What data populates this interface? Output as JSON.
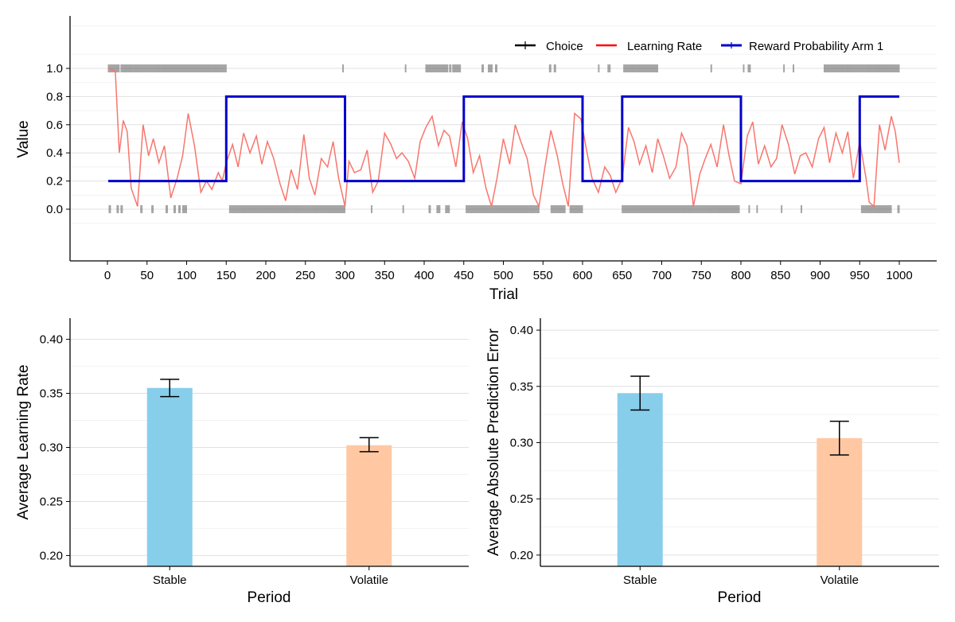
{
  "chart_data": [
    {
      "type": "line",
      "xlabel": "Trial",
      "ylabel": "Value",
      "xlim": [
        0,
        1000
      ],
      "ylim": [
        -0.2,
        1.2
      ],
      "x_ticks": [
        "0",
        "50",
        "100",
        "150",
        "200",
        "250",
        "300",
        "350",
        "400",
        "450",
        "500",
        "550",
        "600",
        "650",
        "700",
        "750",
        "800",
        "850",
        "900",
        "950",
        "1000"
      ],
      "y_ticks": [
        "0.0",
        "0.2",
        "0.4",
        "0.6",
        "0.8",
        "1.0"
      ],
      "grid": true,
      "legend_position": "top-right",
      "legend": [
        "Choice",
        "Learning Rate",
        "Reward Probability Arm 1"
      ],
      "colors": {
        "choice": "#000000",
        "learning_rate": "#f8766d",
        "learning_rate_legend": "#ff0000",
        "reward": "#0000cc",
        "choice_tick": "#555555"
      },
      "series": [
        {
          "name": "Reward Probability Arm 1",
          "x": [
            1,
            150,
            150,
            300,
            300,
            450,
            450,
            600,
            600,
            650,
            650,
            800,
            800,
            950,
            950,
            1000
          ],
          "y": [
            0.2,
            0.2,
            0.8,
            0.8,
            0.2,
            0.2,
            0.8,
            0.8,
            0.2,
            0.2,
            0.8,
            0.8,
            0.2,
            0.2,
            0.8,
            0.8
          ]
        },
        {
          "name": "Learning Rate",
          "x": [
            1,
            10,
            15,
            20,
            25,
            30,
            38,
            45,
            52,
            58,
            65,
            72,
            80,
            88,
            95,
            102,
            110,
            118,
            125,
            132,
            140,
            145,
            150,
            158,
            165,
            172,
            180,
            188,
            195,
            202,
            210,
            218,
            225,
            232,
            240,
            248,
            255,
            262,
            270,
            278,
            285,
            292,
            300,
            305,
            312,
            320,
            328,
            335,
            342,
            350,
            358,
            365,
            372,
            380,
            388,
            395,
            402,
            410,
            418,
            425,
            432,
            440,
            448,
            455,
            462,
            470,
            478,
            485,
            492,
            500,
            508,
            515,
            522,
            530,
            538,
            545,
            552,
            560,
            568,
            575,
            582,
            590,
            598,
            605,
            612,
            620,
            628,
            635,
            642,
            650,
            658,
            665,
            672,
            680,
            688,
            695,
            702,
            710,
            718,
            725,
            732,
            740,
            748,
            755,
            762,
            770,
            778,
            785,
            792,
            800,
            808,
            815,
            822,
            830,
            838,
            845,
            852,
            860,
            868,
            875,
            882,
            890,
            898,
            905,
            912,
            920,
            928,
            935,
            942,
            950,
            958,
            962,
            968,
            975,
            982,
            990,
            995,
            1000
          ],
          "y": [
            1.0,
            0.98,
            0.4,
            0.63,
            0.55,
            0.15,
            0.02,
            0.6,
            0.38,
            0.5,
            0.33,
            0.45,
            0.08,
            0.22,
            0.38,
            0.68,
            0.45,
            0.12,
            0.2,
            0.14,
            0.26,
            0.2,
            0.33,
            0.46,
            0.3,
            0.54,
            0.4,
            0.52,
            0.32,
            0.48,
            0.36,
            0.18,
            0.06,
            0.28,
            0.14,
            0.53,
            0.22,
            0.1,
            0.36,
            0.3,
            0.48,
            0.22,
            0.02,
            0.34,
            0.26,
            0.28,
            0.42,
            0.12,
            0.2,
            0.54,
            0.46,
            0.36,
            0.4,
            0.34,
            0.22,
            0.48,
            0.58,
            0.66,
            0.45,
            0.56,
            0.52,
            0.3,
            0.62,
            0.5,
            0.26,
            0.38,
            0.15,
            0.02,
            0.22,
            0.5,
            0.32,
            0.6,
            0.48,
            0.36,
            0.1,
            0.02,
            0.28,
            0.56,
            0.38,
            0.18,
            0.02,
            0.68,
            0.64,
            0.42,
            0.22,
            0.12,
            0.3,
            0.24,
            0.12,
            0.22,
            0.58,
            0.48,
            0.32,
            0.45,
            0.26,
            0.5,
            0.38,
            0.22,
            0.3,
            0.54,
            0.45,
            0.02,
            0.25,
            0.36,
            0.46,
            0.3,
            0.6,
            0.38,
            0.2,
            0.18,
            0.52,
            0.62,
            0.32,
            0.45,
            0.3,
            0.36,
            0.6,
            0.46,
            0.25,
            0.38,
            0.4,
            0.3,
            0.5,
            0.58,
            0.33,
            0.54,
            0.4,
            0.55,
            0.22,
            0.48,
            0.22,
            0.05,
            0.02,
            0.6,
            0.42,
            0.66,
            0.55,
            0.33
          ]
        },
        {
          "name": "Choice",
          "choice_0_ranges": [
            [
              2,
              4
            ],
            [
              12,
              14
            ],
            [
              17,
              19
            ],
            [
              42,
              44
            ],
            [
              56,
              58
            ],
            [
              74,
              76
            ],
            [
              84,
              86
            ],
            [
              90,
              92
            ],
            [
              95,
              97
            ],
            [
              98,
              100
            ],
            [
              154,
              300
            ],
            [
              333,
              334
            ],
            [
              373,
              374
            ],
            [
              406,
              408
            ],
            [
              416,
              420
            ],
            [
              427,
              432
            ],
            [
              453,
              545
            ],
            [
              560,
              578
            ],
            [
              584,
              600
            ],
            [
              650,
              798
            ],
            [
              810,
              811
            ],
            [
              820,
              821
            ],
            [
              851,
              852
            ],
            [
              876,
              877
            ],
            [
              952,
              990
            ],
            [
              998,
              1000
            ]
          ],
          "choice_1_ranges": [
            [
              1,
              15
            ],
            [
              17,
              150
            ],
            [
              297,
              298
            ],
            [
              376,
              377
            ],
            [
              402,
              430
            ],
            [
              432,
              434
            ],
            [
              436,
              446
            ],
            [
              473,
              475
            ],
            [
              481,
              486
            ],
            [
              490,
              492
            ],
            [
              558,
              560
            ],
            [
              564,
              566
            ],
            [
              620,
              621
            ],
            [
              632,
              633
            ],
            [
              634,
              635
            ],
            [
              652,
              695
            ],
            [
              762,
              763
            ],
            [
              803,
              804
            ],
            [
              809,
              812
            ],
            [
              854,
              855
            ],
            [
              866,
              867
            ],
            [
              905,
              1000
            ]
          ]
        }
      ]
    },
    {
      "type": "bar",
      "xlabel": "Period",
      "ylabel": "Average Learning Rate",
      "categories": [
        "Stable",
        "Volatile"
      ],
      "values": [
        0.355,
        0.302
      ],
      "error_low": [
        0.347,
        0.296
      ],
      "error_high": [
        0.363,
        0.309
      ],
      "ylim": [
        0.19,
        0.41
      ],
      "y_ticks": [
        "0.20",
        "0.25",
        "0.30",
        "0.35",
        "0.40"
      ],
      "colors": [
        "#87ceeb",
        "#ffc8a3"
      ],
      "grid": true
    },
    {
      "type": "bar",
      "xlabel": "Period",
      "ylabel": "Average Absolute Prediction Error",
      "categories": [
        "Stable",
        "Volatile"
      ],
      "values": [
        0.344,
        0.304
      ],
      "error_low": [
        0.329,
        0.289
      ],
      "error_high": [
        0.359,
        0.319
      ],
      "ylim": [
        0.19,
        0.405
      ],
      "y_ticks": [
        "0.20",
        "0.25",
        "0.30",
        "0.35",
        "0.40"
      ],
      "colors": [
        "#87ceeb",
        "#ffc8a3"
      ],
      "grid": true
    }
  ]
}
